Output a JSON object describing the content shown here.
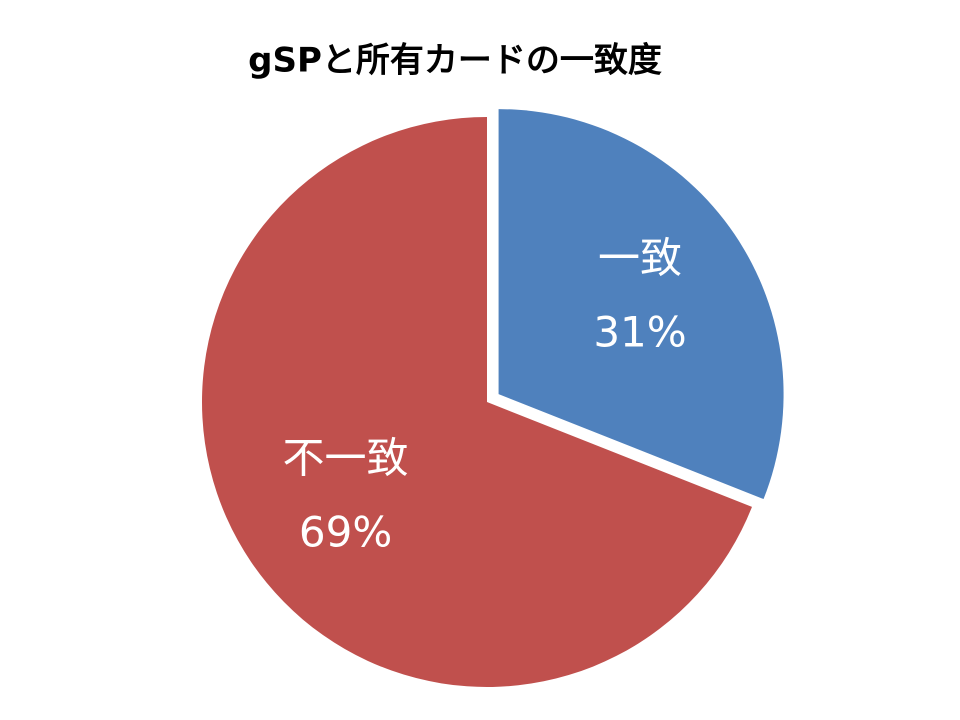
{
  "chart_data": {
    "type": "pie",
    "title": "gSPと所有カードの一致度",
    "categories": [
      "一致",
      "不一致"
    ],
    "values": [
      31,
      69
    ],
    "value_labels": [
      "31%",
      "69%"
    ],
    "colors": [
      "#4f81bd",
      "#c0504d"
    ]
  }
}
